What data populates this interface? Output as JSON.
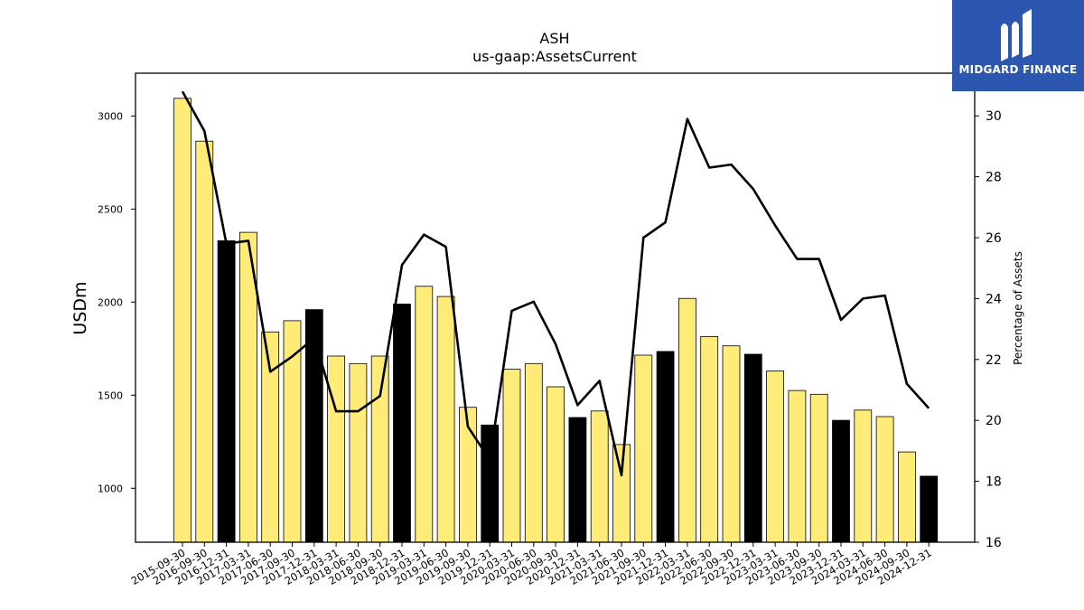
{
  "chart_data": {
    "type": "bar",
    "title": "ASH",
    "subtitle": "us-gaap:AssetsCurrent",
    "ylabel": "USDm",
    "y2label": "Percentage of Assets",
    "ylim": [
      710,
      3230
    ],
    "y2lim": [
      16,
      31.4
    ],
    "yticks": [
      1000,
      1500,
      2000,
      2500,
      3000
    ],
    "y2ticks": [
      16,
      18,
      20,
      22,
      24,
      26,
      28,
      30
    ],
    "categories": [
      "2015-09-30",
      "2016-09-30",
      "2016-12-31",
      "2017-03-31",
      "2017-06-30",
      "2017-09-30",
      "2017-12-31",
      "2018-03-31",
      "2018-06-30",
      "2018-09-30",
      "2018-12-31",
      "2019-03-31",
      "2019-06-30",
      "2019-09-30",
      "2019-12-31",
      "2020-03-31",
      "2020-06-30",
      "2020-09-30",
      "2020-12-31",
      "2021-03-31",
      "2021-06-30",
      "2021-09-30",
      "2021-12-31",
      "2022-03-31",
      "2022-06-30",
      "2022-09-30",
      "2022-12-31",
      "2023-03-31",
      "2023-06-30",
      "2023-09-30",
      "2023-12-31",
      "2024-03-31",
      "2024-06-30",
      "2024-09-30",
      "2024-12-31"
    ],
    "series": [
      {
        "values": [
          3095,
          2865,
          2330,
          2375,
          1840,
          1900,
          1960,
          1710,
          1670,
          1710,
          1990,
          2085,
          2030,
          1435,
          1340,
          1640,
          1670,
          1545,
          1380,
          1415,
          1235,
          1715,
          1735,
          2020,
          1815,
          1765,
          1720,
          1630,
          1525,
          1505,
          1365,
          1420,
          1385,
          1195,
          1065
        ],
        "highlight": [
          false,
          false,
          true,
          false,
          false,
          false,
          true,
          false,
          false,
          false,
          true,
          false,
          false,
          false,
          true,
          false,
          false,
          false,
          true,
          false,
          false,
          false,
          true,
          false,
          false,
          false,
          true,
          false,
          false,
          false,
          true,
          false,
          false,
          false,
          true
        ],
        "color": "#ffeb77",
        "highlight_color": "#000000"
      },
      {
        "axis": "right",
        "type": "line",
        "values": [
          30.8,
          29.5,
          25.8,
          25.9,
          21.6,
          22.1,
          22.7,
          20.3,
          20.3,
          20.8,
          25.1,
          26.1,
          25.7,
          19.8,
          18.7,
          23.6,
          23.9,
          22.5,
          20.5,
          21.3,
          18.2,
          26.0,
          26.5,
          29.9,
          28.3,
          28.4,
          27.6,
          26.4,
          25.3,
          25.3,
          23.3,
          24.0,
          24.1,
          21.2,
          20.4
        ],
        "color": "#000000"
      }
    ]
  },
  "logo": {
    "text": "MIDGARD FINANCE",
    "bg_color": "#2b57b0"
  }
}
